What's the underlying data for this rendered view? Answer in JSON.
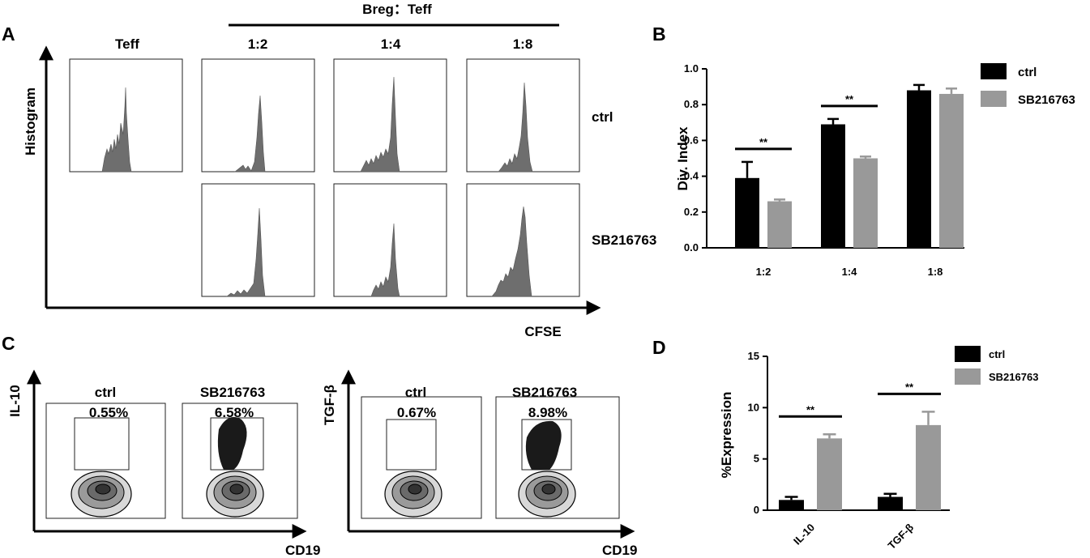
{
  "panel_letters": [
    "A",
    "B",
    "C",
    "D"
  ],
  "panel_a": {
    "group_header": "Breg：Teff",
    "column_titles": [
      "Teff",
      "1:2",
      "1:4",
      "1:8"
    ],
    "row_labels": [
      "ctrl",
      "SB216763"
    ],
    "y_axis_label": "Histogram",
    "x_axis_label": "CFSE"
  },
  "panel_c": {
    "plots": [
      {
        "y_axis_label": "IL-10",
        "x_axis_label": "CD19",
        "samples": [
          {
            "name": "ctrl",
            "percent": "0.55%"
          },
          {
            "name": "SB216763",
            "percent": "6.58%"
          }
        ]
      },
      {
        "y_axis_label": "TGF-β",
        "x_axis_label": "CD19",
        "samples": [
          {
            "name": "ctrl",
            "percent": "0.67%"
          },
          {
            "name": "SB216763",
            "percent": "8.98%"
          }
        ]
      }
    ]
  },
  "colors": {
    "ctrl": "#000000",
    "sb": "#999999",
    "histogram": "#6e6e6e"
  },
  "chart_data": [
    {
      "id": "B",
      "type": "bar",
      "title": "",
      "xlabel": "",
      "ylabel": "Div. Index",
      "categories": [
        "1:2",
        "1:4",
        "1:8"
      ],
      "series": [
        {
          "name": "ctrl",
          "values": [
            0.39,
            0.69,
            0.88
          ],
          "errors": [
            0.09,
            0.03,
            0.03
          ]
        },
        {
          "name": "SB216763",
          "values": [
            0.26,
            0.5,
            0.86
          ],
          "errors": [
            0.01,
            0.01,
            0.03
          ]
        }
      ],
      "ylim": [
        0,
        1.0
      ],
      "yticks": [
        "0.0",
        "0.2",
        "0.4",
        "0.6",
        "0.8",
        "1.0"
      ],
      "significance": [
        {
          "category": "1:2",
          "label": "**"
        },
        {
          "category": "1:4",
          "label": "**"
        }
      ],
      "legend": "top-right"
    },
    {
      "id": "D",
      "type": "bar",
      "title": "",
      "xlabel": "",
      "ylabel": "%Expression",
      "categories": [
        "IL-10",
        "TGF-β"
      ],
      "series": [
        {
          "name": "ctrl",
          "values": [
            1.0,
            1.3
          ],
          "errors": [
            0.3,
            0.3
          ]
        },
        {
          "name": "SB216763",
          "values": [
            7.0,
            8.3
          ],
          "errors": [
            0.4,
            1.3
          ]
        }
      ],
      "ylim": [
        0,
        15
      ],
      "yticks": [
        "0",
        "5",
        "10",
        "15"
      ],
      "significance": [
        {
          "category": "IL-10",
          "label": "**"
        },
        {
          "category": "TGF-β",
          "label": "**"
        }
      ],
      "legend": "top-right"
    }
  ]
}
